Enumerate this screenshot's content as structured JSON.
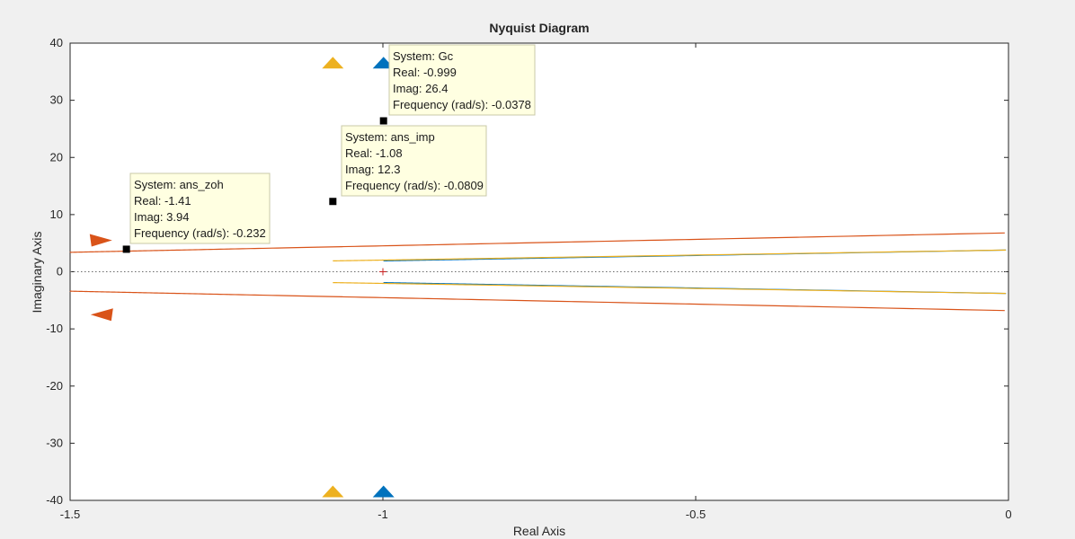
{
  "chart_data": {
    "type": "line",
    "title": "Nyquist Diagram",
    "xlabel": "Real Axis",
    "ylabel": "Imaginary Axis",
    "xlim": [
      -1.5,
      0
    ],
    "ylim": [
      -40,
      40
    ],
    "xticks": [
      -1.5,
      -1,
      -0.5,
      0
    ],
    "xtick_labels": [
      "-1.5",
      "-1",
      "-0.5",
      "0"
    ],
    "yticks": [
      40,
      30,
      20,
      10,
      0,
      -10,
      -20,
      -30,
      -40
    ],
    "ytick_labels": [
      "40",
      "30",
      "20",
      "10",
      "0",
      "-10",
      "-20",
      "-30",
      "-40"
    ],
    "grid": false,
    "critical_point": {
      "x": -1,
      "y": 0
    },
    "series": [
      {
        "name": "Gc",
        "color": "#0072BD",
        "asymptote_real": -0.999,
        "arrow_y": [
          36.5,
          -38.5
        ]
      },
      {
        "name": "ans_imp",
        "color": "#EDB120",
        "asymptote_real": -1.08,
        "arrow_y": [
          36.5,
          -38.5
        ]
      },
      {
        "name": "ans_zoh",
        "color": "#D95319",
        "asymptote_real": -1.5,
        "arrow_y": [
          5.5,
          -7.5
        ]
      }
    ],
    "datatips": [
      {
        "lines": [
          {
            "label": "System",
            "sep": ": ",
            "value": "Gc"
          },
          {
            "label": "Real",
            "sep": ": ",
            "value": "-0.999"
          },
          {
            "label": "Imag",
            "sep": ": ",
            "value": "26.4"
          },
          {
            "label": "Frequency (rad/s)",
            "sep": ": ",
            "value": "-0.0378"
          }
        ],
        "x": -0.999,
        "y": 26.4
      },
      {
        "lines": [
          {
            "label": "System",
            "sep": ": ",
            "value": "ans_imp"
          },
          {
            "label": "Real",
            "sep": ": ",
            "value": "-1.08"
          },
          {
            "label": "Imag",
            "sep": ": ",
            "value": "12.3"
          },
          {
            "label": "Frequency (rad/s)",
            "sep": ": ",
            "value": "-0.0809"
          }
        ],
        "x": -1.08,
        "y": 12.3
      },
      {
        "lines": [
          {
            "label": "System",
            "sep": ": ",
            "value": "ans_zoh"
          },
          {
            "label": "Real",
            "sep": ": ",
            "value": "-1.41"
          },
          {
            "label": "Imag",
            "sep": ": ",
            "value": "3.94"
          },
          {
            "label": "Frequency (rad/s)",
            "sep": ": ",
            "value": "-0.232"
          }
        ],
        "x": -1.41,
        "y": 3.94
      }
    ]
  }
}
